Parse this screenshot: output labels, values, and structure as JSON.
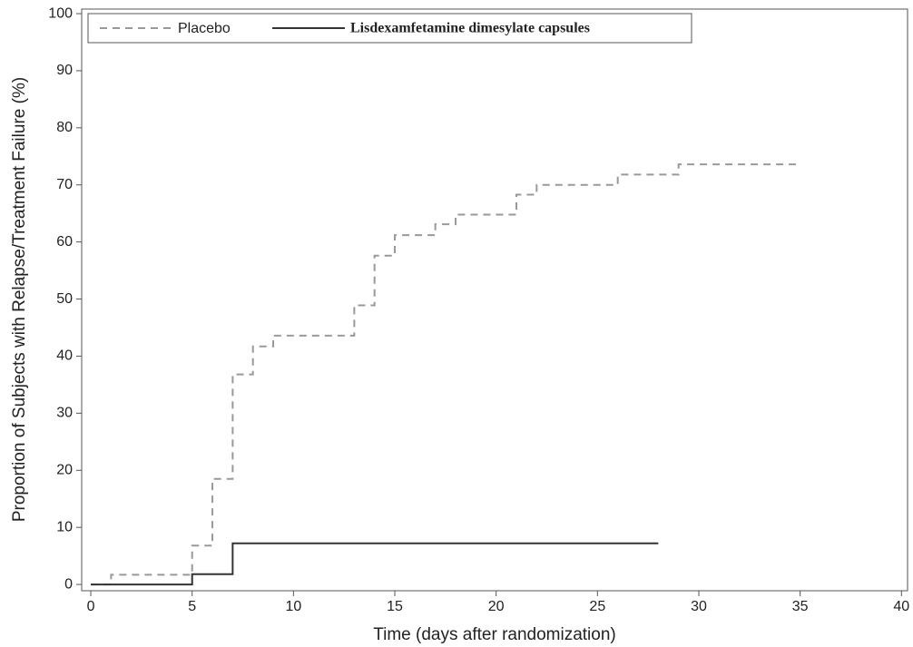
{
  "chart_data": {
    "type": "line",
    "drawstyle": "steps-post",
    "x_label": "Time (days after randomization)",
    "y_label": "Proportion of Subjects with Relapse/Treatment Failure (%)",
    "xlim": [
      -0.45,
      40.3
    ],
    "ylim": [
      -1.1,
      100.8
    ],
    "xticks": [
      0,
      5,
      10,
      15,
      20,
      25,
      30,
      35,
      40
    ],
    "yticks": [
      0,
      10,
      20,
      30,
      40,
      50,
      60,
      70,
      80,
      90,
      100
    ],
    "legend": "top-left",
    "series": [
      {
        "name": "Placebo",
        "color": "#999999",
        "linestyle": "dashed",
        "x": [
          0,
          1,
          5,
          6,
          7,
          8,
          9,
          13,
          14,
          15,
          17,
          18,
          21,
          22,
          26,
          29,
          35
        ],
        "values": [
          0,
          1.7,
          6.8,
          18.5,
          36.8,
          41.7,
          43.6,
          48.9,
          57.6,
          61.2,
          63.1,
          64.8,
          68.3,
          70.0,
          71.8,
          73.6,
          73.6
        ]
      },
      {
        "name": "Lisdexamfetamine dimesylate capsules",
        "color": "#333333",
        "linestyle": "solid",
        "x": [
          0,
          5,
          7,
          28
        ],
        "values": [
          0,
          1.8,
          7.2,
          7.2
        ]
      }
    ]
  }
}
